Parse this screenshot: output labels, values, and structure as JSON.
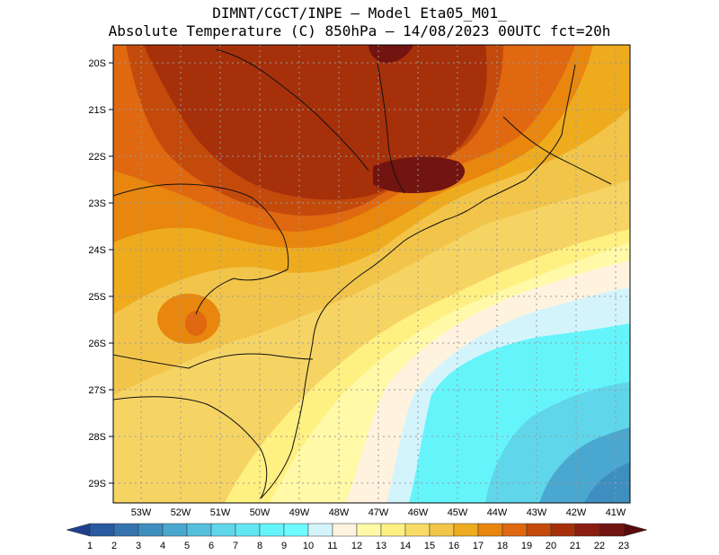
{
  "header": {
    "line1": "DIMNT/CGCT/INPE –  Model Eta05_M01_",
    "line2": "Absolute Temperature (C) 850hPa –  14/08/2023 00UTC fct=20h"
  },
  "axes": {
    "lat_labels": [
      "20S",
      "21S",
      "22S",
      "23S",
      "24S",
      "25S",
      "26S",
      "27S",
      "28S",
      "29S"
    ],
    "lon_labels": [
      "53W",
      "52W",
      "51W",
      "50W",
      "49W",
      "48W",
      "47W",
      "46W",
      "45W",
      "44W",
      "43W",
      "42W",
      "41W"
    ]
  },
  "colorbar": {
    "levels": [
      "1",
      "2",
      "3",
      "4",
      "5",
      "6",
      "7",
      "8",
      "9",
      "10",
      "11",
      "12",
      "13",
      "14",
      "15",
      "16",
      "17",
      "18",
      "19",
      "20",
      "21",
      "22",
      "23"
    ],
    "colors": [
      "#1f3f8e",
      "#2a5aa0",
      "#3674b0",
      "#3f8ec0",
      "#4aa7cf",
      "#55bfdd",
      "#5fd6ea",
      "#63e6f3",
      "#66f4fb",
      "#6cfcff",
      "#d4f4fc",
      "#fff3df",
      "#fff9a8",
      "#fff082",
      "#f9dc66",
      "#f2c54a",
      "#eeab1e",
      "#e8860e",
      "#df6810",
      "#c44a0c",
      "#a6300a",
      "#8a1c10",
      "#721410",
      "#5a0a0c"
    ]
  }
}
